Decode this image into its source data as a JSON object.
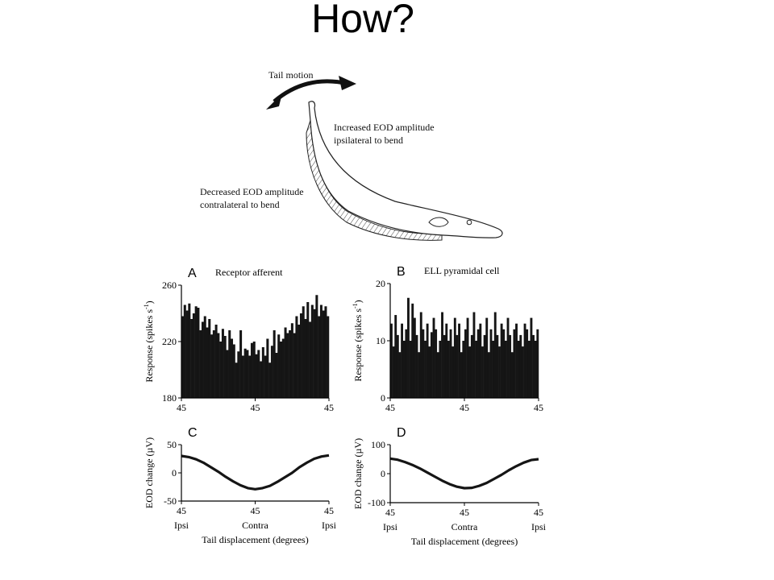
{
  "slide": {
    "title": "How?"
  },
  "diagram": {
    "tail_motion": "Tail motion",
    "increased_line1": "Increased EOD amplitude",
    "increased_line2": "ipsilateral to bend",
    "decreased_line1": "Decreased EOD amplitude",
    "decreased_line2": "contralateral to bend"
  },
  "colors": {
    "ink": "#1a1a1a",
    "axis": "#000000"
  },
  "chart_data": [
    {
      "panel": "A",
      "type": "bar",
      "title": "Receptor afferent",
      "ylabel": "Response (spikes s",
      "ylabel_sup": "-1",
      "ylabel_close": ")",
      "ylim": [
        180,
        260
      ],
      "yticks": [
        180,
        220,
        260
      ],
      "xlim": [
        0,
        1
      ],
      "xticks": [
        {
          "v": 0,
          "label": "45"
        },
        {
          "v": 0.5,
          "label": "45"
        },
        {
          "v": 1,
          "label": "45"
        }
      ],
      "values": [
        238,
        246,
        242,
        247,
        236,
        240,
        245,
        244,
        228,
        234,
        238,
        230,
        236,
        225,
        228,
        232,
        226,
        220,
        229,
        224,
        214,
        228,
        222,
        218,
        205,
        213,
        228,
        210,
        215,
        214,
        210,
        219,
        220,
        211,
        214,
        206,
        216,
        210,
        222,
        205,
        217,
        228,
        212,
        225,
        220,
        222,
        230,
        226,
        228,
        233,
        226,
        238,
        232,
        240,
        245,
        236,
        248,
        234,
        246,
        243,
        253,
        238,
        246,
        242,
        245,
        238
      ]
    },
    {
      "panel": "B",
      "type": "bar",
      "title": "ELL pyramidal cell",
      "ylabel": "Response (spikes s",
      "ylabel_sup": "-1",
      "ylabel_close": ")",
      "ylim": [
        0,
        20
      ],
      "yticks": [
        0,
        10,
        20
      ],
      "xlim": [
        0,
        1
      ],
      "xticks": [
        {
          "v": 0,
          "label": "45"
        },
        {
          "v": 0.5,
          "label": "45"
        },
        {
          "v": 1,
          "label": "45"
        }
      ],
      "values": [
        13,
        9,
        14.5,
        11,
        8,
        13,
        10,
        12,
        17.5,
        10,
        16.5,
        14,
        11,
        8,
        15,
        12,
        10,
        13,
        9,
        11.5,
        14,
        12,
        8,
        10,
        15,
        11,
        13,
        10,
        12,
        9,
        14,
        11,
        13,
        8,
        10,
        12,
        14,
        9,
        11,
        15,
        10,
        12,
        13,
        9,
        11,
        14,
        8,
        12,
        10,
        15,
        11,
        9,
        13,
        12,
        10,
        14,
        11,
        8,
        12,
        13,
        10,
        11,
        9,
        13,
        12,
        10,
        14,
        11,
        10,
        12
      ]
    },
    {
      "panel": "C",
      "type": "line",
      "ylabel": "EOD change (µV)",
      "ylim": [
        -50,
        50
      ],
      "yticks": [
        -50,
        0,
        50
      ],
      "xlim": [
        0,
        1
      ],
      "xticks": [
        {
          "v": 0,
          "label": "45"
        },
        {
          "v": 0.5,
          "label": "45"
        },
        {
          "v": 1,
          "label": "45"
        }
      ],
      "xcats": [
        {
          "v": 0,
          "label": "Ipsi"
        },
        {
          "v": 0.5,
          "label": "Contra"
        },
        {
          "v": 1,
          "label": "Ipsi"
        }
      ],
      "xlabel": "Tail displacement (degrees)",
      "x": [
        0,
        0.05,
        0.1,
        0.15,
        0.2,
        0.25,
        0.3,
        0.35,
        0.4,
        0.45,
        0.5,
        0.55,
        0.6,
        0.65,
        0.7,
        0.75,
        0.8,
        0.85,
        0.9,
        0.95,
        1
      ],
      "y": [
        30,
        28,
        24,
        18,
        10,
        2,
        -7,
        -15,
        -22,
        -27,
        -29,
        -27,
        -23,
        -16,
        -8,
        0,
        10,
        18,
        25,
        29,
        31
      ]
    },
    {
      "panel": "D",
      "type": "line",
      "ylabel": "EOD change (µV)",
      "ylim": [
        -100,
        100
      ],
      "yticks": [
        -100,
        0,
        100
      ],
      "xlim": [
        0,
        1
      ],
      "xticks": [
        {
          "v": 0,
          "label": "45"
        },
        {
          "v": 0.5,
          "label": "45"
        },
        {
          "v": 1,
          "label": "45"
        }
      ],
      "xcats": [
        {
          "v": 0,
          "label": "Ipsi"
        },
        {
          "v": 0.5,
          "label": "Contra"
        },
        {
          "v": 1,
          "label": "Ipsi"
        }
      ],
      "xlabel": "Tail displacement (degrees)",
      "x": [
        0,
        0.05,
        0.1,
        0.15,
        0.2,
        0.25,
        0.3,
        0.35,
        0.4,
        0.45,
        0.5,
        0.55,
        0.6,
        0.65,
        0.7,
        0.75,
        0.8,
        0.85,
        0.9,
        0.95,
        1
      ],
      "y": [
        52,
        48,
        40,
        30,
        18,
        4,
        -10,
        -24,
        -36,
        -45,
        -50,
        -49,
        -42,
        -32,
        -18,
        -4,
        12,
        26,
        38,
        47,
        50
      ]
    }
  ]
}
